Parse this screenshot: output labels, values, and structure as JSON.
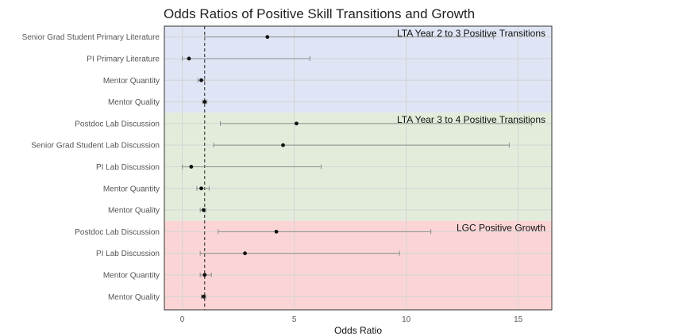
{
  "chart_data": {
    "type": "forest",
    "title": "Odds Ratios of Positive Skill Transitions and Growth",
    "xlabel": "Odds Ratio",
    "ylabel": "",
    "xlim": [
      -0.8,
      16.5
    ],
    "x_ticks": [
      0,
      5,
      10,
      15
    ],
    "reference_line": 1,
    "grid": true,
    "groups": [
      {
        "label": "LTA Year 2 to 3 Positive Transitions",
        "color": "#dfe5f5",
        "rows": [
          {
            "label": "Senior Grad Student Primary Literature",
            "estimate": 3.8,
            "lower": 1.0,
            "upper": 13.9
          },
          {
            "label": "PI Primary Literature",
            "estimate": 0.3,
            "lower": 0.0,
            "upper": 5.7
          },
          {
            "label": "Mentor Quantity",
            "estimate": 0.85,
            "lower": 0.7,
            "upper": 1.0
          },
          {
            "label": "Mentor Quality",
            "estimate": 1.0,
            "lower": 0.9,
            "upper": 1.1
          }
        ]
      },
      {
        "label": "LTA Year 3 to 4 Positive Transitions",
        "color": "#e3ecdb",
        "rows": [
          {
            "label": "Postdoc Lab Discussion",
            "estimate": 5.1,
            "lower": 1.7,
            "upper": 15.6
          },
          {
            "label": "Senior Grad Student Lab Discussion",
            "estimate": 4.5,
            "lower": 1.4,
            "upper": 14.6
          },
          {
            "label": "PI Lab Discussion",
            "estimate": 0.4,
            "lower": 0.0,
            "upper": 6.2
          },
          {
            "label": "Mentor Quantity",
            "estimate": 0.85,
            "lower": 0.65,
            "upper": 1.2
          },
          {
            "label": "Mentor Quality",
            "estimate": 0.95,
            "lower": 0.8,
            "upper": 1.05
          }
        ]
      },
      {
        "label": "LGC Positive Growth",
        "color": "#fbd5d5",
        "rows": [
          {
            "label": "Postdoc Lab Discussion",
            "estimate": 4.2,
            "lower": 1.6,
            "upper": 11.1
          },
          {
            "label": "PI Lab Discussion",
            "estimate": 2.8,
            "lower": 0.8,
            "upper": 9.7
          },
          {
            "label": "Mentor Quantity",
            "estimate": 1.0,
            "lower": 0.8,
            "upper": 1.3
          },
          {
            "label": "Mentor Quality",
            "estimate": 0.95,
            "lower": 0.85,
            "upper": 1.05
          }
        ]
      }
    ],
    "colors": {
      "point": "#111111",
      "ci_line": "#8a8f8a",
      "grid": "#d4d4d4",
      "ref_line": "#222222",
      "frame": "#333333"
    }
  }
}
